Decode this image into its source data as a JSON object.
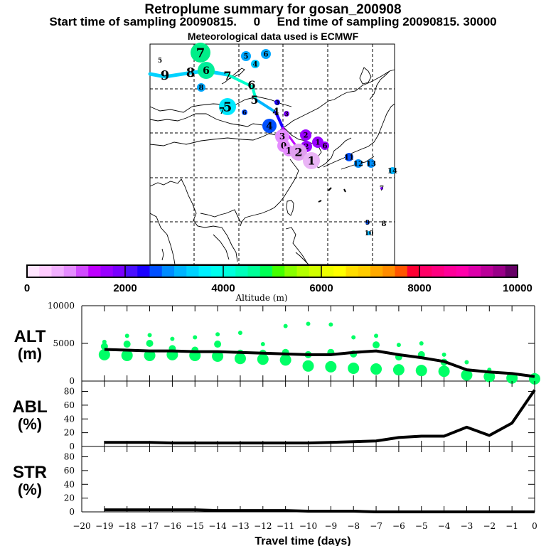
{
  "header": {
    "title": "Retroplume summary for gosan_200908",
    "subtitle": "Start time of sampling 20090815.     0     End time of sampling 20090815. 30000",
    "met_note": "Meteorological data used is ECMWF"
  },
  "colorbar": {
    "label": "Altitude (m)",
    "ticks": [
      "0",
      "2000",
      "4000",
      "6000",
      "8000",
      "10000"
    ],
    "range": [
      0,
      10000
    ],
    "colors": [
      "#ffe6ff",
      "#ffccff",
      "#f2b0ff",
      "#e58cff",
      "#d24bff",
      "#c000ff",
      "#9a00ff",
      "#7a00ff",
      "#4a10ff",
      "#1a00ff",
      "#0050ff",
      "#008cff",
      "#00b4ff",
      "#00d2ff",
      "#00f0ff",
      "#00ffee",
      "#00ffdd",
      "#00ffbb",
      "#00ff99",
      "#00ff55",
      "#44ff00",
      "#88ff00",
      "#b4ff00",
      "#d2ff00",
      "#eeff00",
      "#ffff00",
      "#ffdd00",
      "#ffcc00",
      "#ffaa00",
      "#ff8c00",
      "#ff5500",
      "#ff0033",
      "#ff0066",
      "#ff0080",
      "#ff0099",
      "#ff00aa",
      "#dd00aa",
      "#bb0099",
      "#990088",
      "#660066"
    ]
  },
  "map": {
    "description": "East Asia retroplume map with dashed lat/lon grid",
    "path_label_sequence": [
      "9",
      "8",
      "7",
      "6",
      "5",
      "4",
      "3",
      "2",
      "1",
      "0"
    ],
    "clusters": [
      {
        "label": "7",
        "color": "#00ee88",
        "size": "large"
      },
      {
        "label": "6",
        "color": "#00ee99",
        "size": "large"
      },
      {
        "label": "5",
        "color": "#00e8ff",
        "size": "large"
      },
      {
        "label": "4",
        "color": "#0050ff",
        "size": "medium"
      },
      {
        "label": "0",
        "color": "#e0a0f0",
        "size": "large"
      },
      {
        "label": "2",
        "color": "#e0a0f0",
        "size": "large"
      },
      {
        "label": "1",
        "color": "#e6aaf4",
        "size": "large"
      },
      {
        "label": "12",
        "color": "#0090ff",
        "size": "small"
      },
      {
        "label": "13",
        "color": "#0090ff",
        "size": "small"
      },
      {
        "label": "14",
        "color": "#00b4ff",
        "size": "small"
      }
    ]
  },
  "chart_data": {
    "type": "line",
    "xlabel": "Travel time (days)",
    "x": [
      -19,
      -18,
      -17,
      -16,
      -15,
      -14,
      -13,
      -12,
      -11,
      -10,
      -9,
      -8,
      -7,
      -6,
      -5,
      -4,
      -3,
      -2,
      -1,
      0
    ],
    "xlim": [
      -20,
      0
    ],
    "xticks": [
      "-20",
      "-19",
      "-18",
      "-17",
      "-16",
      "-15",
      "-14",
      "-13",
      "-12",
      "-11",
      "-10",
      "-9",
      "-8",
      "-7",
      "-6",
      "-5",
      "-4",
      "-3",
      "-2",
      "-1",
      "0"
    ],
    "panels": [
      {
        "name": "ALT",
        "label_line1": "ALT",
        "label_line2": "(m)",
        "ylim": [
          0,
          10000
        ],
        "yticks": [
          "0",
          "5000",
          "10000"
        ],
        "ytick_values": [
          0,
          5000,
          10000
        ],
        "mean_line": [
          4200,
          4100,
          4000,
          4000,
          3900,
          3900,
          3800,
          3700,
          3600,
          3500,
          3500,
          3800,
          4000,
          3500,
          3100,
          2600,
          1500,
          1200,
          1000,
          600
        ],
        "cluster_points": [
          {
            "x": -19,
            "y": [
              5200,
              4600,
              3500
            ]
          },
          {
            "x": -18,
            "y": [
              6000,
              4900,
              3400
            ]
          },
          {
            "x": -17,
            "y": [
              6100,
              5000,
              3400
            ]
          },
          {
            "x": -16,
            "y": [
              5600,
              4300,
              3500
            ]
          },
          {
            "x": -15,
            "y": [
              5800,
              4100,
              3400
            ]
          },
          {
            "x": -14,
            "y": [
              6200,
              4900,
              3300
            ]
          },
          {
            "x": -13,
            "y": [
              6400,
              3700,
              3000
            ]
          },
          {
            "x": -12,
            "y": [
              4900,
              3700,
              2900
            ]
          },
          {
            "x": -11,
            "y": [
              7300,
              3800,
              2800
            ]
          },
          {
            "x": -10,
            "y": [
              7600,
              3500,
              2000
            ]
          },
          {
            "x": -9,
            "y": [
              7500,
              3800,
              1900
            ]
          },
          {
            "x": -8,
            "y": [
              5800,
              3600,
              1700
            ]
          },
          {
            "x": -7,
            "y": [
              6000,
              4800,
              1600
            ]
          },
          {
            "x": -6,
            "y": [
              4800,
              3200,
              1500
            ]
          },
          {
            "x": -5,
            "y": [
              5000,
              3500,
              1400
            ]
          },
          {
            "x": -4,
            "y": [
              3500,
              2500,
              1300
            ]
          },
          {
            "x": -3,
            "y": [
              2500,
              800
            ]
          },
          {
            "x": -2,
            "y": [
              1500,
              600
            ]
          },
          {
            "x": -1,
            "y": [
              700,
              400
            ]
          },
          {
            "x": 0,
            "y": [
              300
            ]
          }
        ]
      },
      {
        "name": "ABL",
        "label_line1": "ABL",
        "label_line2": "(%)",
        "ylim": [
          0,
          95
        ],
        "yticks": [
          "0",
          "20",
          "40",
          "60",
          "80"
        ],
        "ytick_values": [
          0,
          20,
          40,
          60,
          80
        ],
        "values": [
          6,
          6,
          6,
          5,
          5,
          5,
          5,
          5,
          5,
          5,
          6,
          7,
          8,
          13,
          15,
          15,
          28,
          16,
          34,
          82
        ]
      },
      {
        "name": "STR",
        "label_line1": "STR",
        "label_line2": "(%)",
        "ylim": [
          0,
          95
        ],
        "yticks": [
          "0",
          "20",
          "40",
          "60",
          "80"
        ],
        "ytick_values": [
          0,
          20,
          40,
          60,
          80
        ],
        "values": [
          3,
          3,
          3,
          3,
          3,
          2,
          2,
          2,
          2,
          1,
          1,
          1,
          0,
          0,
          0,
          0,
          0,
          0,
          0,
          0
        ]
      }
    ]
  }
}
